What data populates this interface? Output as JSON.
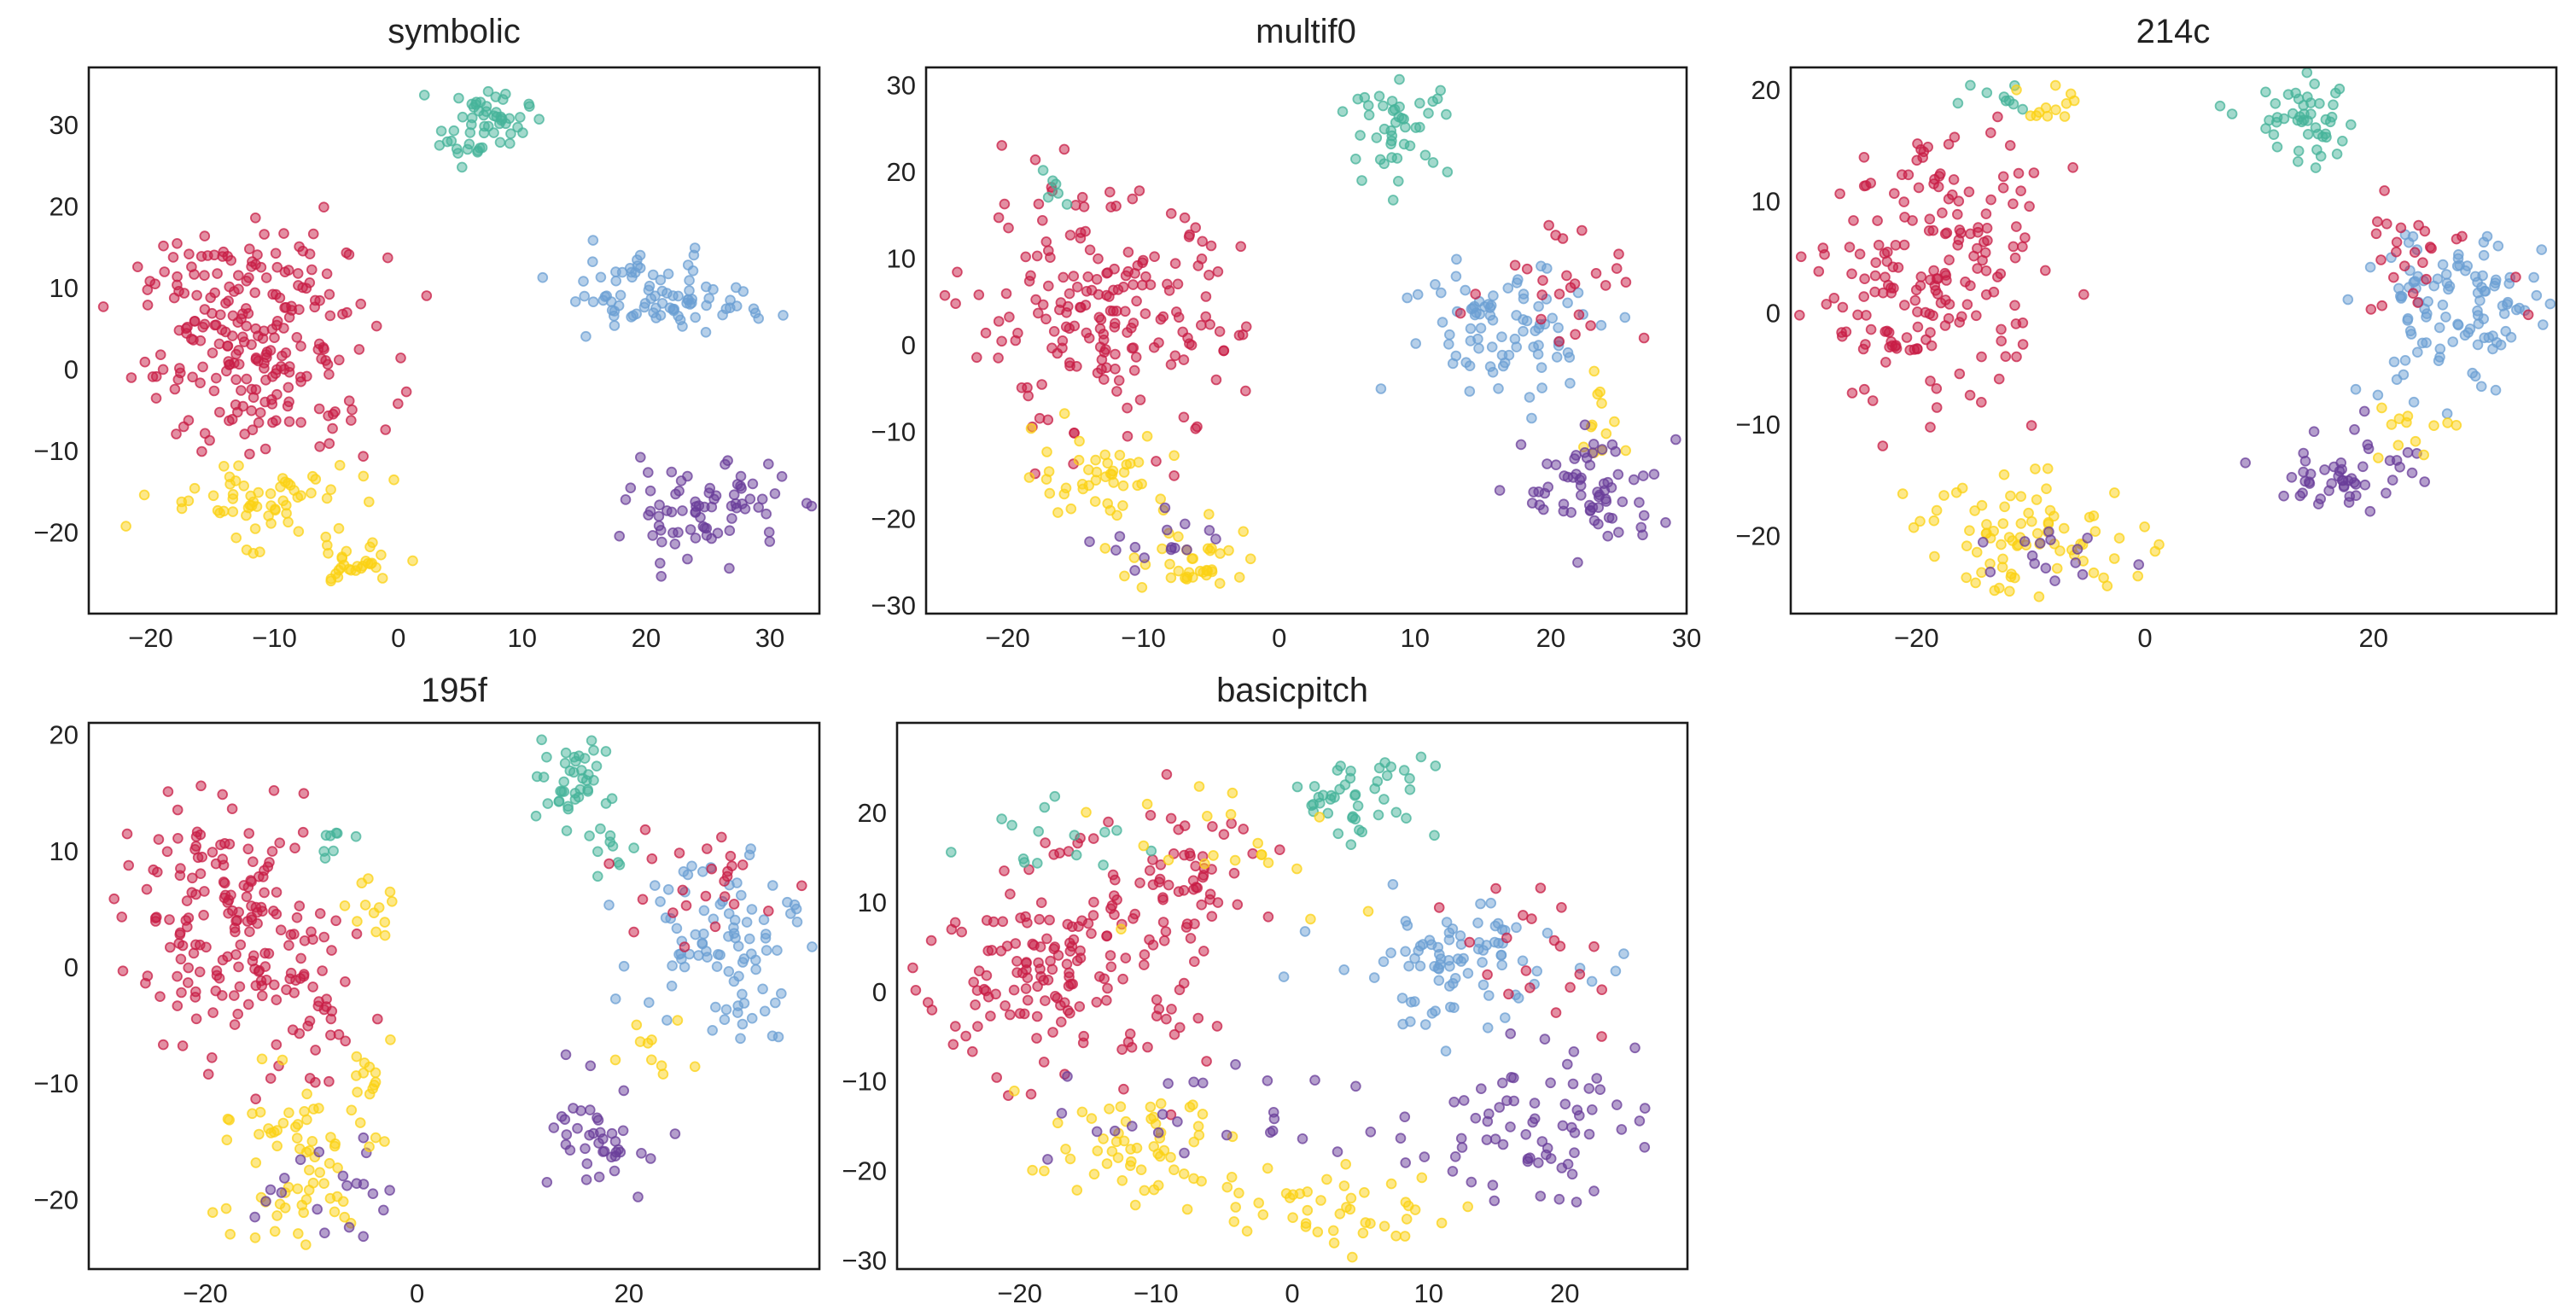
{
  "figure_caption": "",
  "chart_data": [
    {
      "type": "scatter",
      "title": "symbolic",
      "xlabel": "",
      "ylabel": "",
      "xlim": [
        -25,
        34
      ],
      "ylim": [
        -30,
        37
      ],
      "xticks": [
        -20,
        -10,
        0,
        10,
        20,
        30
      ],
      "yticks": [
        -20,
        -10,
        0,
        10,
        20,
        30
      ],
      "xtick_labels": [
        "−20",
        "−10",
        "0",
        "10",
        "20",
        "30"
      ],
      "ytick_labels": [
        "−20",
        "−10",
        "0",
        "10",
        "20",
        "30"
      ],
      "grid": false,
      "clusters": [
        {
          "color": "#c81e46",
          "cx": -11,
          "cy": 2,
          "sx": 5,
          "sy": 6,
          "n": 200
        },
        {
          "color": "#c81e46",
          "cx": -14,
          "cy": 13,
          "sx": 3.5,
          "sy": 3,
          "n": 40
        },
        {
          "color": "#45b39a",
          "cx": 7,
          "cy": 30,
          "sx": 1.8,
          "sy": 2.2,
          "n": 55
        },
        {
          "color": "#6b9fd3",
          "cx": 20,
          "cy": 9,
          "sx": 3.5,
          "sy": 2.5,
          "n": 75
        },
        {
          "color": "#6b9fd3",
          "cx": 27,
          "cy": 8,
          "sx": 1.5,
          "sy": 1.2,
          "n": 12
        },
        {
          "color": "#fbd114",
          "cx": -12,
          "cy": -16,
          "sx": 4,
          "sy": 2.5,
          "n": 60
        },
        {
          "color": "#fbd114",
          "cx": -4,
          "cy": -24,
          "sx": 2,
          "sy": 1.5,
          "n": 30
        },
        {
          "color": "#6a3d9a",
          "cx": 25,
          "cy": -17,
          "sx": 3.2,
          "sy": 2.8,
          "n": 75
        }
      ]
    },
    {
      "type": "scatter",
      "title": "multif0",
      "xlabel": "",
      "ylabel": "",
      "xlim": [
        -26,
        30
      ],
      "ylim": [
        -31,
        32
      ],
      "xticks": [
        -20,
        -10,
        0,
        10,
        20,
        30
      ],
      "yticks": [
        -30,
        -20,
        -10,
        0,
        10,
        20,
        30
      ],
      "xtick_labels": [
        "−20",
        "−10",
        "0",
        "10",
        "20",
        "30"
      ],
      "ytick_labels": [
        "−30",
        "−20",
        "−10",
        "0",
        "10",
        "20",
        "30"
      ],
      "grid": false,
      "clusters": [
        {
          "color": "#c81e46",
          "cx": -13,
          "cy": 3,
          "sx": 5,
          "sy": 7,
          "n": 190
        },
        {
          "color": "#45b39a",
          "cx": 9,
          "cy": 25,
          "sx": 1.8,
          "sy": 2.5,
          "n": 45
        },
        {
          "color": "#45b39a",
          "cx": -17,
          "cy": 18,
          "sx": 1.2,
          "sy": 1.2,
          "n": 6
        },
        {
          "color": "#6b9fd3",
          "cx": 17,
          "cy": 2,
          "sx": 4,
          "sy": 4,
          "n": 85
        },
        {
          "color": "#c81e46",
          "cx": 21,
          "cy": 8,
          "sx": 3,
          "sy": 4,
          "n": 25
        },
        {
          "color": "#fbd114",
          "cx": -13,
          "cy": -15,
          "sx": 2.5,
          "sy": 2.5,
          "n": 45
        },
        {
          "color": "#fbd114",
          "cx": -6,
          "cy": -25,
          "sx": 2.5,
          "sy": 2,
          "n": 35
        },
        {
          "color": "#fbd114",
          "cx": 24,
          "cy": -9,
          "sx": 1.5,
          "sy": 2.5,
          "n": 12
        },
        {
          "color": "#6a3d9a",
          "cx": 23,
          "cy": -17,
          "sx": 2.5,
          "sy": 3.5,
          "n": 65
        },
        {
          "color": "#6a3d9a",
          "cx": -8,
          "cy": -23,
          "sx": 2.5,
          "sy": 2,
          "n": 15
        }
      ]
    },
    {
      "type": "scatter",
      "title": "214c",
      "xlabel": "",
      "ylabel": "",
      "xlim": [
        -31,
        36
      ],
      "ylim": [
        -27,
        22
      ],
      "xticks": [
        -20,
        0,
        20
      ],
      "yticks": [
        -20,
        -10,
        0,
        10,
        20
      ],
      "xtick_labels": [
        "−20",
        "0",
        "20"
      ],
      "ytick_labels": [
        "−20",
        "−10",
        "0",
        "10",
        "20"
      ],
      "grid": false,
      "clusters": [
        {
          "color": "#c81e46",
          "cx": -19,
          "cy": 2,
          "sx": 5,
          "sy": 5,
          "n": 160
        },
        {
          "color": "#c81e46",
          "cx": -17,
          "cy": 12,
          "sx": 3,
          "sy": 3,
          "n": 30
        },
        {
          "color": "#45b39a",
          "cx": 14,
          "cy": 17,
          "sx": 2.5,
          "sy": 2,
          "n": 50
        },
        {
          "color": "#45b39a",
          "cx": -13,
          "cy": 19,
          "sx": 2,
          "sy": 0.8,
          "n": 10
        },
        {
          "color": "#fbd114",
          "cx": -8,
          "cy": 18,
          "sx": 1.5,
          "sy": 1.2,
          "n": 12
        },
        {
          "color": "#6b9fd3",
          "cx": 27,
          "cy": 0,
          "sx": 4,
          "sy": 4,
          "n": 110
        },
        {
          "color": "#c81e46",
          "cx": 24,
          "cy": 5,
          "sx": 4,
          "sy": 2.5,
          "n": 25
        },
        {
          "color": "#fbd114",
          "cx": -10,
          "cy": -20,
          "sx": 5,
          "sy": 2.5,
          "n": 80
        },
        {
          "color": "#6a3d9a",
          "cx": -8,
          "cy": -22,
          "sx": 5,
          "sy": 1.5,
          "n": 15
        },
        {
          "color": "#6a3d9a",
          "cx": 18,
          "cy": -14,
          "sx": 3,
          "sy": 2,
          "n": 50
        },
        {
          "color": "#fbd114",
          "cx": 24,
          "cy": -11,
          "sx": 2,
          "sy": 2,
          "n": 12
        }
      ]
    },
    {
      "type": "scatter",
      "title": "195f",
      "xlabel": "",
      "ylabel": "",
      "xlim": [
        -31,
        38
      ],
      "ylim": [
        -26,
        21
      ],
      "xticks": [
        -20,
        0,
        20
      ],
      "yticks": [
        -20,
        -10,
        0,
        10,
        20
      ],
      "xtick_labels": [
        "−20",
        "0",
        "20"
      ],
      "ytick_labels": [
        "−20",
        "−10",
        "0",
        "10",
        "20"
      ],
      "grid": false,
      "clusters": [
        {
          "color": "#c81e46",
          "cx": -18,
          "cy": 4,
          "sx": 5,
          "sy": 4.5,
          "n": 160
        },
        {
          "color": "#c81e46",
          "cx": -10,
          "cy": -4,
          "sx": 3,
          "sy": 4,
          "n": 40
        },
        {
          "color": "#45b39a",
          "cx": 14,
          "cy": 16,
          "sx": 2,
          "sy": 1.5,
          "n": 40
        },
        {
          "color": "#45b39a",
          "cx": 18,
          "cy": 10,
          "sx": 1.5,
          "sy": 1.2,
          "n": 10
        },
        {
          "color": "#45b39a",
          "cx": -8,
          "cy": 11,
          "sx": 1.2,
          "sy": 1,
          "n": 8
        },
        {
          "color": "#fbd114",
          "cx": -4,
          "cy": 5,
          "sx": 1.2,
          "sy": 1.5,
          "n": 12
        },
        {
          "color": "#6b9fd3",
          "cx": 29,
          "cy": 3,
          "sx": 4,
          "sy": 4.5,
          "n": 95
        },
        {
          "color": "#c81e46",
          "cx": 26,
          "cy": 7,
          "sx": 4,
          "sy": 3,
          "n": 25
        },
        {
          "color": "#fbd114",
          "cx": -12,
          "cy": -17,
          "sx": 4,
          "sy": 4,
          "n": 65
        },
        {
          "color": "#6a3d9a",
          "cx": -9,
          "cy": -20,
          "sx": 3,
          "sy": 3,
          "n": 20
        },
        {
          "color": "#fbd114",
          "cx": -4,
          "cy": -10,
          "sx": 1.5,
          "sy": 2,
          "n": 15
        },
        {
          "color": "#6a3d9a",
          "cx": 18,
          "cy": -15,
          "sx": 2.5,
          "sy": 2.5,
          "n": 40
        },
        {
          "color": "#fbd114",
          "cx": 23,
          "cy": -8,
          "sx": 2,
          "sy": 1.5,
          "n": 10
        }
      ]
    },
    {
      "type": "scatter",
      "title": "basicpitch",
      "xlabel": "",
      "ylabel": "",
      "xlim": [
        -29,
        29
      ],
      "ylim": [
        -31,
        30
      ],
      "xticks": [
        -20,
        -10,
        0,
        10,
        20
      ],
      "yticks": [
        -30,
        -20,
        -10,
        0,
        10,
        20
      ],
      "xtick_labels": [
        "−20",
        "−10",
        "0",
        "10",
        "20"
      ],
      "ytick_labels": [
        "−30",
        "−20",
        "−10",
        "0",
        "10",
        "20"
      ],
      "grid": false,
      "clusters": [
        {
          "color": "#c81e46",
          "cx": -17,
          "cy": 3,
          "sx": 5.5,
          "sy": 6,
          "n": 180
        },
        {
          "color": "#c81e46",
          "cx": -8,
          "cy": 14,
          "sx": 3,
          "sy": 4,
          "n": 40
        },
        {
          "color": "#45b39a",
          "cx": 5,
          "cy": 22,
          "sx": 3,
          "sy": 2.5,
          "n": 45
        },
        {
          "color": "#45b39a",
          "cx": -17,
          "cy": 17,
          "sx": 3,
          "sy": 2,
          "n": 15
        },
        {
          "color": "#fbd114",
          "cx": -6,
          "cy": 18,
          "sx": 5,
          "sy": 4,
          "n": 20
        },
        {
          "color": "#6b9fd3",
          "cx": 12,
          "cy": 3,
          "sx": 4.5,
          "sy": 3.5,
          "n": 85
        },
        {
          "color": "#c81e46",
          "cx": 18,
          "cy": 4,
          "sx": 3,
          "sy": 4,
          "n": 20
        },
        {
          "color": "#fbd114",
          "cx": -12,
          "cy": -18,
          "sx": 4,
          "sy": 3,
          "n": 55
        },
        {
          "color": "#fbd114",
          "cx": 3,
          "cy": -24,
          "sx": 4,
          "sy": 2.5,
          "n": 45
        },
        {
          "color": "#6a3d9a",
          "cx": 17,
          "cy": -15,
          "sx": 4,
          "sy": 4,
          "n": 70
        },
        {
          "color": "#6a3d9a",
          "cx": -6,
          "cy": -14,
          "sx": 6,
          "sy": 4,
          "n": 25
        }
      ]
    }
  ]
}
